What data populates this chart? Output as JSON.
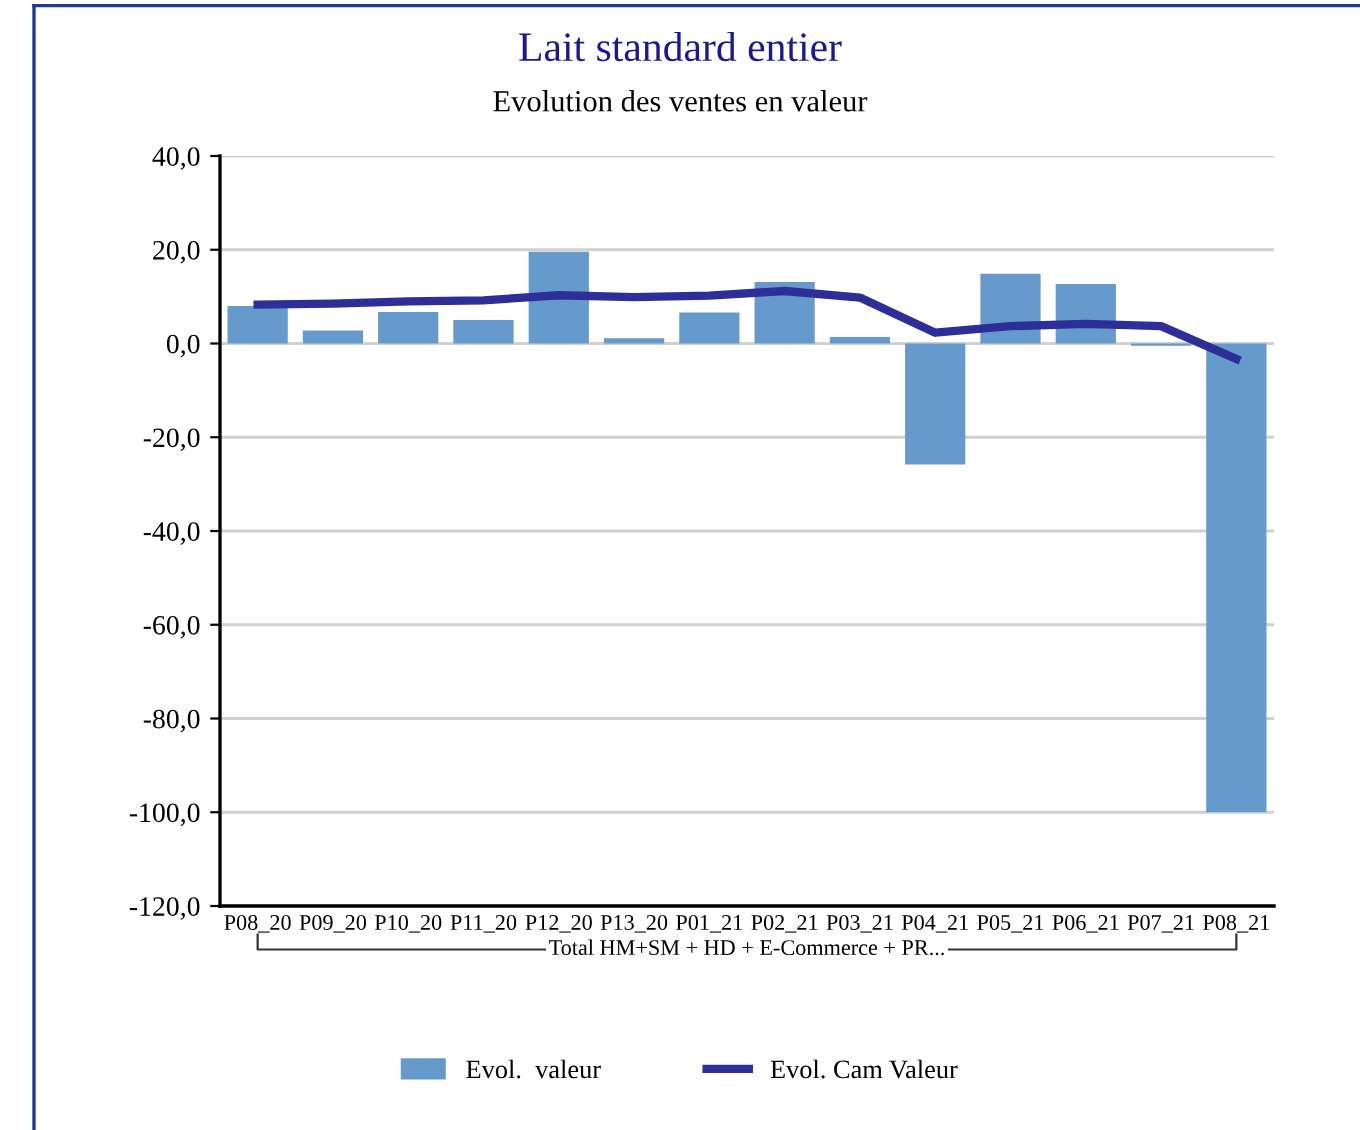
{
  "chart_data": {
    "type": "bar",
    "title": "Lait standard entier",
    "subtitle": "Evolution des ventes en valeur",
    "categories": [
      "P08_20",
      "P09_20",
      "P10_20",
      "P11_20",
      "P12_20",
      "P13_20",
      "P01_21",
      "P02_21",
      "P03_21",
      "P04_21",
      "P05_21",
      "P06_21",
      "P07_21",
      "P08_21"
    ],
    "series": [
      {
        "name": "Evol.  valeur",
        "color": "#6699cc",
        "values": [
          8.0,
          2.8,
          6.7,
          5.0,
          19.6,
          1.1,
          6.6,
          13.1,
          1.4,
          -25.8,
          14.9,
          12.7,
          -0.5,
          -100.0
        ]
      },
      {
        "name": "Evol. Cam Valeur",
        "type": "line",
        "color": "#2e2e99",
        "values": [
          8.3,
          8.5,
          9.0,
          9.2,
          10.3,
          9.9,
          10.2,
          11.2,
          9.8,
          2.3,
          3.7,
          4.2,
          3.7,
          -3.3
        ]
      }
    ],
    "annotations": [
      "Total HM+SM + HD + E-Commerce + PR..."
    ],
    "ylim": [
      -120,
      40
    ],
    "yticks": [
      {
        "value": -120,
        "label": "-120,0"
      },
      {
        "value": -100,
        "label": "-100,0"
      },
      {
        "value": -80,
        "label": "-80,0"
      },
      {
        "value": -60,
        "label": "-60,0"
      },
      {
        "value": -40,
        "label": "-40,0"
      },
      {
        "value": -20,
        "label": "-20,0"
      },
      {
        "value": 0,
        "label": "0,0"
      },
      {
        "value": 20,
        "label": "20,0"
      },
      {
        "value": 40,
        "label": "40,0"
      }
    ],
    "grid": "y",
    "legend": "bottom",
    "marker": "none",
    "line_style": "solid"
  }
}
